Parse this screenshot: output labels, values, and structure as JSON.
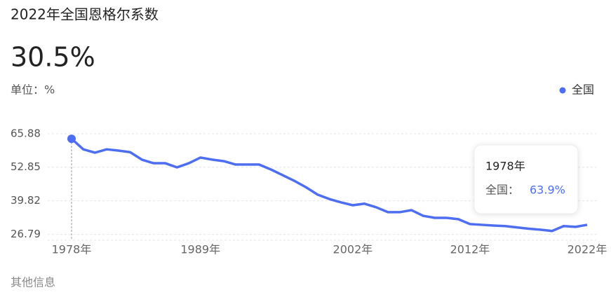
{
  "title": "2022年全国恩格尔系数",
  "headline": "30.5%",
  "unit": "单位：%",
  "footer": "其他信息",
  "chart_data": {
    "type": "line",
    "categories": [
      "1978年",
      null,
      null,
      null,
      null,
      null,
      null,
      null,
      null,
      null,
      null,
      "1989年",
      null,
      null,
      null,
      null,
      null,
      null,
      null,
      null,
      null,
      null,
      null,
      null,
      "2002年",
      null,
      null,
      null,
      null,
      null,
      null,
      null,
      null,
      null,
      "2012年",
      null,
      null,
      null,
      null,
      null,
      null,
      null,
      null,
      null,
      "2022年"
    ],
    "series": [
      {
        "name": "全国",
        "color": "#4e6ef2",
        "values": [
          63.9,
          59.8,
          58.5,
          59.8,
          59.3,
          58.7,
          55.8,
          54.4,
          54.4,
          52.8,
          54.4,
          56.6,
          55.8,
          55.2,
          53.9,
          53.9,
          53.9,
          52.0,
          49.8,
          47.6,
          45.1,
          42.2,
          40.5,
          39.2,
          38.1,
          38.7,
          37.3,
          35.4,
          35.4,
          36.2,
          34.0,
          33.2,
          33.2,
          32.7,
          30.8,
          30.5,
          30.2,
          30.0,
          29.5,
          29.0,
          28.6,
          28.1,
          30.0,
          29.7,
          30.5
        ]
      }
    ],
    "ylim": [
      24.5,
      71
    ],
    "yticks": [
      26.79,
      39.82,
      52.85,
      65.88
    ],
    "grid": true,
    "legend": "top-right",
    "tooltip": {
      "category": "1978年",
      "series_label": "全国：",
      "value_label": "63.9%"
    }
  }
}
